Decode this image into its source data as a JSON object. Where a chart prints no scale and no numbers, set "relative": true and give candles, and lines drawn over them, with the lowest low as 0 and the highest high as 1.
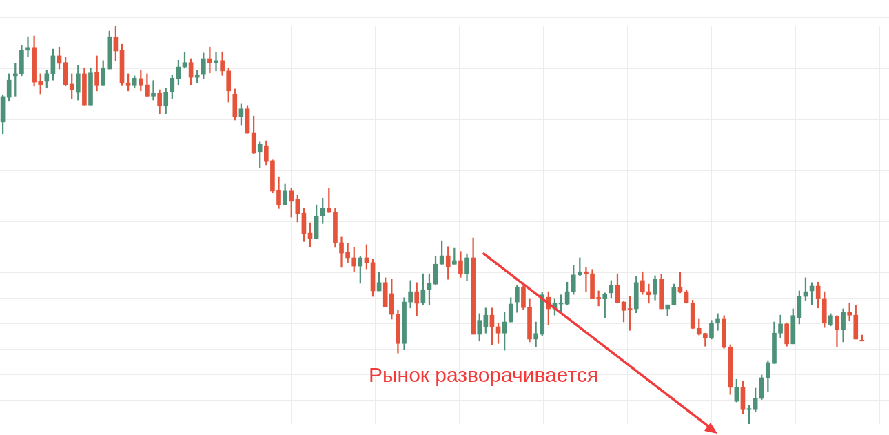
{
  "chart_data": {
    "type": "candlestick",
    "relative": true,
    "grid": true,
    "annotations": [
      "Рынок разворачивается"
    ],
    "categories": [
      null,
      null,
      null,
      null,
      null,
      null,
      null,
      null,
      null,
      null,
      null,
      null,
      null,
      null,
      null,
      null,
      null,
      null,
      null,
      null,
      null,
      null,
      null,
      null,
      null,
      null,
      null,
      null,
      null,
      null,
      null,
      null,
      null,
      null,
      null,
      null,
      null,
      null,
      null,
      null,
      null,
      null,
      null,
      null,
      null,
      null,
      null,
      null,
      null,
      null,
      null,
      null,
      null,
      null,
      null,
      null,
      null,
      null,
      null,
      null,
      null,
      null,
      null,
      null,
      null,
      null,
      null,
      null,
      null,
      null,
      null,
      null,
      null,
      null,
      null,
      null,
      null,
      null,
      null,
      null,
      null,
      null,
      null,
      null,
      null,
      null,
      null,
      null,
      null,
      null,
      null,
      null,
      null,
      null,
      null,
      null,
      null,
      null,
      null,
      null,
      null,
      null,
      null,
      null,
      null,
      null,
      null,
      null,
      null,
      null,
      null,
      null,
      null,
      null,
      null,
      null,
      null,
      null,
      null,
      null,
      null,
      null,
      null,
      null,
      null,
      null,
      null,
      null,
      null,
      null,
      null,
      null,
      null,
      null,
      null,
      null,
      null,
      null
    ],
    "ohlc": [
      [
        0.758,
        0.825,
        0.727,
        0.822
      ],
      [
        0.82,
        0.879,
        0.81,
        0.863
      ],
      [
        0.874,
        0.905,
        0.823,
        0.879
      ],
      [
        0.879,
        0.951,
        0.874,
        0.938
      ],
      [
        0.938,
        0.972,
        0.922,
        0.945
      ],
      [
        0.945,
        0.974,
        0.848,
        0.858
      ],
      [
        0.86,
        0.879,
        0.827,
        0.851
      ],
      [
        0.86,
        0.887,
        0.843,
        0.879
      ],
      [
        0.879,
        0.941,
        0.863,
        0.924
      ],
      [
        0.924,
        0.946,
        0.891,
        0.905
      ],
      [
        0.907,
        0.92,
        0.848,
        0.851
      ],
      [
        0.853,
        0.879,
        0.817,
        0.839
      ],
      [
        0.832,
        0.9,
        0.813,
        0.879
      ],
      [
        0.879,
        0.894,
        0.799,
        0.799
      ],
      [
        0.799,
        0.894,
        0.799,
        0.881
      ],
      [
        0.882,
        0.924,
        0.836,
        0.849
      ],
      [
        0.849,
        0.912,
        0.849,
        0.894
      ],
      [
        0.891,
        0.986,
        0.891,
        0.972
      ],
      [
        0.971,
        1.0,
        0.912,
        0.936
      ],
      [
        0.938,
        0.953,
        0.849,
        0.855
      ],
      [
        0.856,
        0.879,
        0.836,
        0.849
      ],
      [
        0.849,
        0.874,
        0.844,
        0.868
      ],
      [
        0.867,
        0.887,
        0.836,
        0.849
      ],
      [
        0.851,
        0.879,
        0.822,
        0.823
      ],
      [
        0.823,
        0.862,
        0.813,
        0.83
      ],
      [
        0.83,
        0.839,
        0.779,
        0.798
      ],
      [
        0.798,
        0.843,
        0.779,
        0.832
      ],
      [
        0.834,
        0.875,
        0.817,
        0.868
      ],
      [
        0.867,
        0.913,
        0.851,
        0.896
      ],
      [
        0.896,
        0.932,
        0.893,
        0.907
      ],
      [
        0.907,
        0.917,
        0.851,
        0.87
      ],
      [
        0.87,
        0.887,
        0.856,
        0.875
      ],
      [
        0.877,
        0.931,
        0.867,
        0.917
      ],
      [
        0.917,
        0.946,
        0.881,
        0.907
      ],
      [
        0.907,
        0.932,
        0.886,
        0.912
      ],
      [
        0.912,
        0.934,
        0.875,
        0.886
      ],
      [
        0.886,
        0.894,
        0.808,
        0.836
      ],
      [
        0.827,
        0.841,
        0.763,
        0.772
      ],
      [
        0.772,
        0.803,
        0.749,
        0.791
      ],
      [
        0.791,
        0.798,
        0.73,
        0.73
      ],
      [
        0.73,
        0.773,
        0.678,
        0.68
      ],
      [
        0.682,
        0.708,
        0.644,
        0.702
      ],
      [
        0.697,
        0.711,
        0.649,
        0.659
      ],
      [
        0.661,
        0.663,
        0.58,
        0.585
      ],
      [
        0.586,
        0.619,
        0.541,
        0.55
      ],
      [
        0.55,
        0.602,
        0.55,
        0.585
      ],
      [
        0.585,
        0.592,
        0.519,
        0.559
      ],
      [
        0.564,
        0.574,
        0.507,
        0.528
      ],
      [
        0.529,
        0.541,
        0.458,
        0.477
      ],
      [
        0.479,
        0.505,
        0.445,
        0.465
      ],
      [
        0.465,
        0.55,
        0.464,
        0.522
      ],
      [
        0.522,
        0.567,
        0.503,
        0.541
      ],
      [
        0.541,
        0.592,
        0.531,
        0.531
      ],
      [
        0.531,
        0.541,
        0.443,
        0.455
      ],
      [
        0.455,
        0.469,
        0.393,
        0.429
      ],
      [
        0.431,
        0.453,
        0.405,
        0.417
      ],
      [
        0.417,
        0.443,
        0.382,
        0.396
      ],
      [
        0.396,
        0.42,
        0.353,
        0.417
      ],
      [
        0.417,
        0.45,
        0.389,
        0.405
      ],
      [
        0.405,
        0.413,
        0.32,
        0.334
      ],
      [
        0.334,
        0.381,
        0.334,
        0.355
      ],
      [
        0.355,
        0.367,
        0.294,
        0.294
      ],
      [
        0.327,
        0.363,
        0.263,
        0.275
      ],
      [
        0.275,
        0.285,
        0.178,
        0.202
      ],
      [
        0.202,
        0.317,
        0.187,
        0.306
      ],
      [
        0.306,
        0.36,
        0.291,
        0.332
      ],
      [
        0.332,
        0.355,
        0.272,
        0.303
      ],
      [
        0.304,
        0.377,
        0.299,
        0.337
      ],
      [
        0.337,
        0.377,
        0.299,
        0.353
      ],
      [
        0.351,
        0.42,
        0.349,
        0.401
      ],
      [
        0.401,
        0.46,
        0.401,
        0.422
      ],
      [
        0.422,
        0.445,
        0.363,
        0.394
      ],
      [
        0.401,
        0.441,
        0.401,
        0.41
      ],
      [
        0.41,
        0.433,
        0.368,
        0.377
      ],
      [
        0.377,
        0.427,
        0.36,
        0.417
      ],
      [
        0.417,
        0.467,
        0.225,
        0.225
      ],
      [
        0.225,
        0.277,
        0.208,
        0.26
      ],
      [
        0.244,
        0.291,
        0.228,
        0.273
      ],
      [
        0.273,
        0.291,
        0.199,
        0.244
      ],
      [
        0.244,
        0.254,
        0.202,
        0.228
      ],
      [
        0.228,
        0.28,
        0.185,
        0.256
      ],
      [
        0.256,
        0.317,
        0.256,
        0.301
      ],
      [
        0.306,
        0.349,
        0.28,
        0.343
      ],
      [
        0.343,
        0.355,
        0.287,
        0.292
      ],
      [
        0.292,
        0.315,
        0.206,
        0.213
      ],
      [
        0.213,
        0.256,
        0.194,
        0.227
      ],
      [
        0.225,
        0.33,
        0.221,
        0.324
      ],
      [
        0.318,
        0.332,
        0.249,
        0.289
      ],
      [
        0.289,
        0.315,
        0.273,
        0.303
      ],
      [
        0.301,
        0.324,
        0.282,
        0.303
      ],
      [
        0.301,
        0.356,
        0.298,
        0.332
      ],
      [
        0.332,
        0.398,
        0.325,
        0.374
      ],
      [
        0.374,
        0.417,
        0.372,
        0.382
      ],
      [
        0.382,
        0.393,
        0.332,
        0.377
      ],
      [
        0.377,
        0.388,
        0.315,
        0.315
      ],
      [
        0.317,
        0.334,
        0.296,
        0.315
      ],
      [
        0.315,
        0.329,
        0.266,
        0.325
      ],
      [
        0.329,
        0.36,
        0.317,
        0.349
      ],
      [
        0.349,
        0.377,
        0.303,
        0.304
      ],
      [
        0.306,
        0.308,
        0.256,
        0.285
      ],
      [
        0.289,
        0.32,
        0.235,
        0.287
      ],
      [
        0.289,
        0.37,
        0.279,
        0.355
      ],
      [
        0.36,
        0.382,
        0.325,
        0.332
      ],
      [
        0.332,
        0.351,
        0.303,
        0.324
      ],
      [
        0.325,
        0.372,
        0.311,
        0.363
      ],
      [
        0.363,
        0.375,
        0.289,
        0.289
      ],
      [
        0.289,
        0.299,
        0.272,
        0.299
      ],
      [
        0.299,
        0.351,
        0.298,
        0.343
      ],
      [
        0.343,
        0.381,
        0.329,
        0.332
      ],
      [
        0.332,
        0.337,
        0.303,
        0.304
      ],
      [
        0.304,
        0.311,
        0.239,
        0.24
      ],
      [
        0.24,
        0.263,
        0.223,
        0.225
      ],
      [
        0.227,
        0.228,
        0.195,
        0.215
      ],
      [
        0.215,
        0.26,
        0.213,
        0.253
      ],
      [
        0.253,
        0.277,
        0.235,
        0.263
      ],
      [
        0.263,
        0.272,
        0.19,
        0.192
      ],
      [
        0.192,
        0.199,
        0.074,
        0.092
      ],
      [
        0.057,
        0.112,
        0.055,
        0.092
      ],
      [
        0.092,
        0.107,
        0.026,
        0.036
      ],
      [
        0.036,
        0.047,
        0,
        0.038
      ],
      [
        0.036,
        0.09,
        0.031,
        0.064
      ],
      [
        0.064,
        0.123,
        0.061,
        0.116
      ],
      [
        0.116,
        0.159,
        0.081,
        0.154
      ],
      [
        0.152,
        0.256,
        0.152,
        0.228
      ],
      [
        0.228,
        0.273,
        0.216,
        0.251
      ],
      [
        0.251,
        0.254,
        0.195,
        0.201
      ],
      [
        0.201,
        0.289,
        0.201,
        0.272
      ],
      [
        0.266,
        0.334,
        0.251,
        0.32
      ],
      [
        0.32,
        0.367,
        0.31,
        0.332
      ],
      [
        0.334,
        0.355,
        0.299,
        0.346
      ],
      [
        0.346,
        0.356,
        0.291,
        0.315
      ],
      [
        0.315,
        0.332,
        0.242,
        0.253
      ],
      [
        0.249,
        0.277,
        0.246,
        0.272
      ],
      [
        0.27,
        0.272,
        0.194,
        0.237
      ],
      [
        0.237,
        0.289,
        0.206,
        0.28
      ],
      [
        0.28,
        0.304,
        0.26,
        0.273
      ],
      [
        0.273,
        0.298,
        0.213,
        0.213
      ],
      [
        0.209,
        0.223,
        0.208,
        0.208
      ]
    ],
    "colors": [
      "#4e9179",
      "#4e9179",
      "#4e9179",
      "#4e9179",
      "#4e9179",
      "#e5533b",
      "#e5533b",
      "#4e9179",
      "#4e9179",
      "#e5533b",
      "#e5533b",
      "#e5533b",
      "#4e9179",
      "#e5533b",
      "#4e9179",
      "#e5533b",
      "#4e9179",
      "#4e9179",
      "#e5533b",
      "#e5533b",
      "#e5533b",
      "#4e9179",
      "#e5533b",
      "#e5533b",
      "#4e9179",
      "#e5533b",
      "#4e9179",
      "#4e9179",
      "#4e9179",
      "#4e9179",
      "#e5533b",
      "#4e9179",
      "#4e9179",
      "#e5533b",
      "#4e9179",
      "#e5533b",
      "#e5533b",
      "#e5533b",
      "#4e9179",
      "#e5533b",
      "#e5533b",
      "#4e9179",
      "#e5533b",
      "#e5533b",
      "#e5533b",
      "#4e9179",
      "#e5533b",
      "#e5533b",
      "#e5533b",
      "#e5533b",
      "#4e9179",
      "#4e9179",
      "#e5533b",
      "#e5533b",
      "#e5533b",
      "#e5533b",
      "#e5533b",
      "#4e9179",
      "#e5533b",
      "#e5533b",
      "#4e9179",
      "#e5533b",
      "#e5533b",
      "#e5533b",
      "#4e9179",
      "#4e9179",
      "#e5533b",
      "#4e9179",
      "#4e9179",
      "#4e9179",
      "#4e9179",
      "#e5533b",
      "#4e9179",
      "#e5533b",
      "#4e9179",
      "#e5533b",
      "#4e9179",
      "#4e9179",
      "#e5533b",
      "#e5533b",
      "#4e9179",
      "#4e9179",
      "#4e9179",
      "#e5533b",
      "#e5533b",
      "#4e9179",
      "#4e9179",
      "#e5533b",
      "#4e9179",
      "#4e9179",
      "#4e9179",
      "#4e9179",
      "#4e9179",
      "#e5533b",
      "#e5533b",
      "#e5533b",
      "#4e9179",
      "#4e9179",
      "#e5533b",
      "#e5533b",
      "#e5533b",
      "#4e9179",
      "#e5533b",
      "#e5533b",
      "#4e9179",
      "#e5533b",
      "#4e9179",
      "#4e9179",
      "#e5533b",
      "#e5533b",
      "#e5533b",
      "#e5533b",
      "#e5533b",
      "#4e9179",
      "#4e9179",
      "#e5533b",
      "#e5533b",
      "#4e9179",
      "#e5533b",
      "#4e9179",
      "#4e9179",
      "#4e9179",
      "#4e9179",
      "#4e9179",
      "#4e9179",
      "#e5533b",
      "#4e9179",
      "#4e9179",
      "#4e9179",
      "#4e9179",
      "#e5533b",
      "#e5533b",
      "#4e9179",
      "#e5533b",
      "#4e9179",
      "#e5533b",
      "#e5533b",
      "#e5533b"
    ]
  }
}
